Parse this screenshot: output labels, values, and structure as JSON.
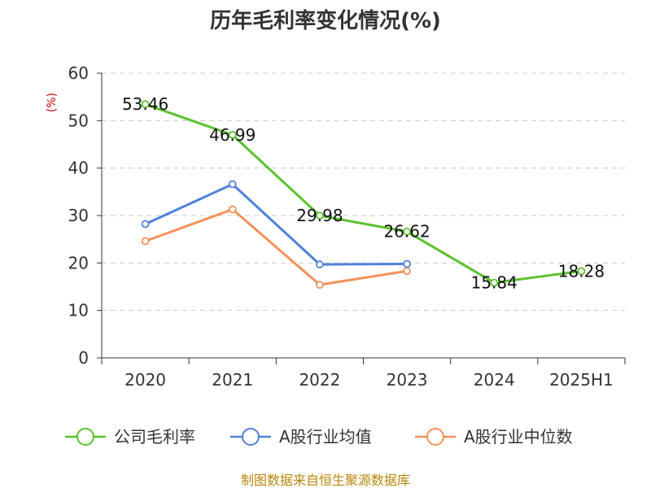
{
  "chart_data": {
    "type": "line",
    "title": "历年毛利率变化情况(%)",
    "ylabel": "(%)",
    "xlabel": "",
    "categories": [
      "2020",
      "2021",
      "2022",
      "2023",
      "2024",
      "2025H1"
    ],
    "ylim": [
      0,
      60
    ],
    "yticks": [
      "0",
      "10",
      "20",
      "30",
      "40",
      "50",
      "60"
    ],
    "grid": true,
    "legend_position": "bottom",
    "series": [
      {
        "name": "公司毛利率",
        "color": "#5cc12f",
        "values": [
          53.46,
          46.99,
          29.98,
          26.62,
          15.84,
          18.28
        ],
        "labels": [
          "53.46",
          "46.99",
          "29.98",
          "26.62",
          "15.84",
          "18.28"
        ]
      },
      {
        "name": "A股行业均值",
        "color": "#4f82d9",
        "values": [
          28.2,
          36.6,
          19.7,
          19.8,
          null,
          null
        ]
      },
      {
        "name": "A股行业中位数",
        "color": "#f5915a",
        "values": [
          24.6,
          31.3,
          15.4,
          18.3,
          null,
          null
        ]
      }
    ],
    "source": "制图数据来自恒生聚源数据库"
  }
}
